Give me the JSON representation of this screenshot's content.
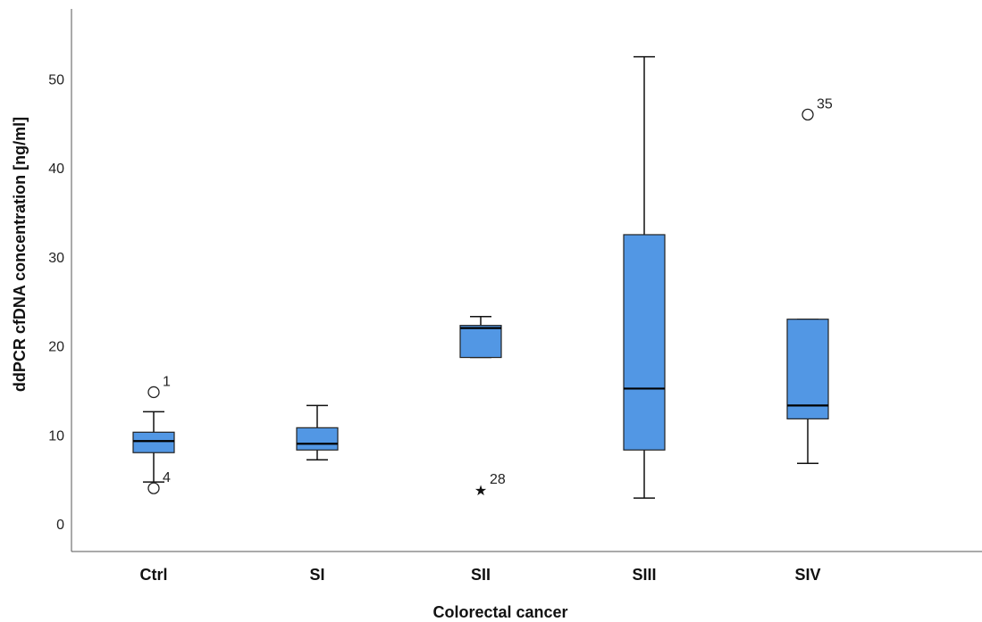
{
  "chart_data": {
    "type": "boxplot",
    "xlabel": "Colorectal cancer",
    "ylabel": "ddPCR cfDNA concentration [ng/ml]",
    "ylim": [
      -3,
      58
    ],
    "yticks": [
      0,
      10,
      20,
      30,
      40,
      50
    ],
    "grid": false,
    "box_color": "#5297e4",
    "categories": [
      "Ctrl",
      "SI",
      "SII",
      "SIII",
      "SIV"
    ],
    "boxes": [
      {
        "category": "Ctrl",
        "whisker_low": 4.7,
        "q1": 8.0,
        "median": 9.3,
        "q3": 10.3,
        "whisker_high": 12.6
      },
      {
        "category": "SI",
        "whisker_low": 7.2,
        "q1": 8.3,
        "median": 9.0,
        "q3": 10.8,
        "whisker_high": 13.3
      },
      {
        "category": "SII",
        "whisker_low": 18.7,
        "q1": 18.7,
        "median": 22.0,
        "q3": 22.3,
        "whisker_high": 23.3
      },
      {
        "category": "SIII",
        "whisker_low": 2.9,
        "q1": 8.3,
        "median": 15.2,
        "q3": 32.5,
        "whisker_high": 52.5
      },
      {
        "category": "SIV",
        "whisker_low": 6.8,
        "q1": 11.8,
        "median": 13.3,
        "q3": 23.0,
        "whisker_high": 23.0
      }
    ],
    "outliers": [
      {
        "category": "Ctrl",
        "value": 14.8,
        "label": "1",
        "marker": "circle"
      },
      {
        "category": "Ctrl",
        "value": 4.0,
        "label": "4",
        "marker": "circle"
      },
      {
        "category": "SII",
        "value": 3.8,
        "label": "28",
        "marker": "star"
      },
      {
        "category": "SIV",
        "value": 46.0,
        "label": "35",
        "marker": "circle"
      }
    ]
  }
}
